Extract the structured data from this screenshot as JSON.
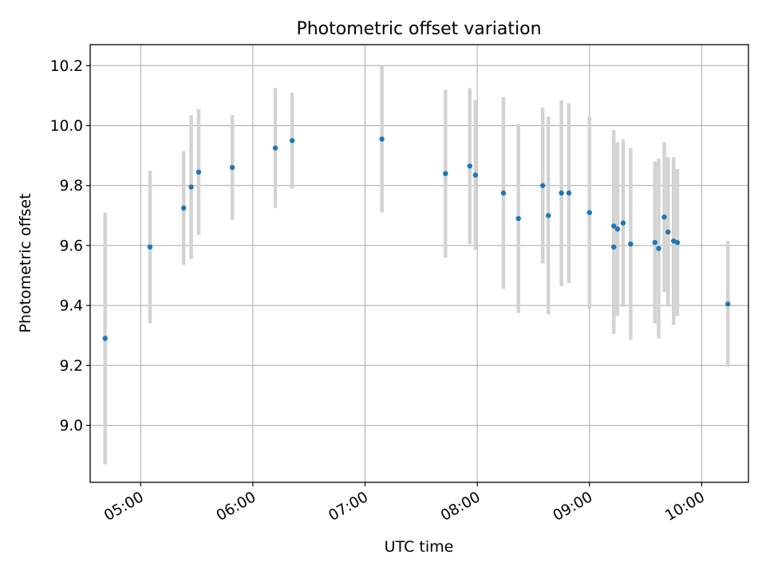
{
  "chart_data": {
    "type": "scatter",
    "title": "Photometric offset variation",
    "xlabel": "UTC time",
    "ylabel": "Photometric offset",
    "grid": true,
    "legend": "none",
    "x_ticks": [
      "05:00",
      "06:00",
      "07:00",
      "08:00",
      "09:00",
      "10:00"
    ],
    "y_ticks": [
      "9.0",
      "9.2",
      "9.4",
      "9.6",
      "9.8",
      "10.0",
      "10.2"
    ],
    "xlim": [
      "04:33",
      "10:25"
    ],
    "ylim": [
      8.81,
      10.27
    ],
    "colors": {
      "point": "#1f77b4",
      "errorbar": "#d3d3d3",
      "grid": "#b0b0b0"
    },
    "series": [
      {
        "x": [
          "04:41",
          "05:05",
          "05:23",
          "05:27",
          "05:31",
          "05:49",
          "06:12",
          "06:21",
          "07:09",
          "07:43",
          "07:56",
          "07:59",
          "08:14",
          "08:22",
          "08:35",
          "08:38",
          "08:45",
          "08:49",
          "09:00",
          "09:13",
          "09:13",
          "09:15",
          "09:18",
          "09:22",
          "09:35",
          "09:37",
          "09:40",
          "09:42",
          "09:45",
          "09:47",
          "10:14"
        ],
        "y": [
          9.29,
          9.595,
          9.725,
          9.795,
          9.845,
          9.86,
          9.925,
          9.95,
          9.955,
          9.84,
          9.865,
          9.835,
          9.775,
          9.69,
          9.8,
          9.7,
          9.775,
          9.775,
          9.71,
          9.595,
          9.665,
          9.655,
          9.675,
          9.605,
          9.61,
          9.59,
          9.695,
          9.645,
          9.615,
          9.61,
          9.405
        ],
        "err": [
          0.42,
          0.255,
          0.19,
          0.24,
          0.21,
          0.175,
          0.2,
          0.16,
          0.245,
          0.28,
          0.26,
          0.25,
          0.32,
          0.315,
          0.26,
          0.33,
          0.31,
          0.3,
          0.32,
          0.29,
          0.32,
          0.29,
          0.28,
          0.32,
          0.27,
          0.3,
          0.25,
          0.25,
          0.28,
          0.245,
          0.21
        ]
      }
    ]
  }
}
